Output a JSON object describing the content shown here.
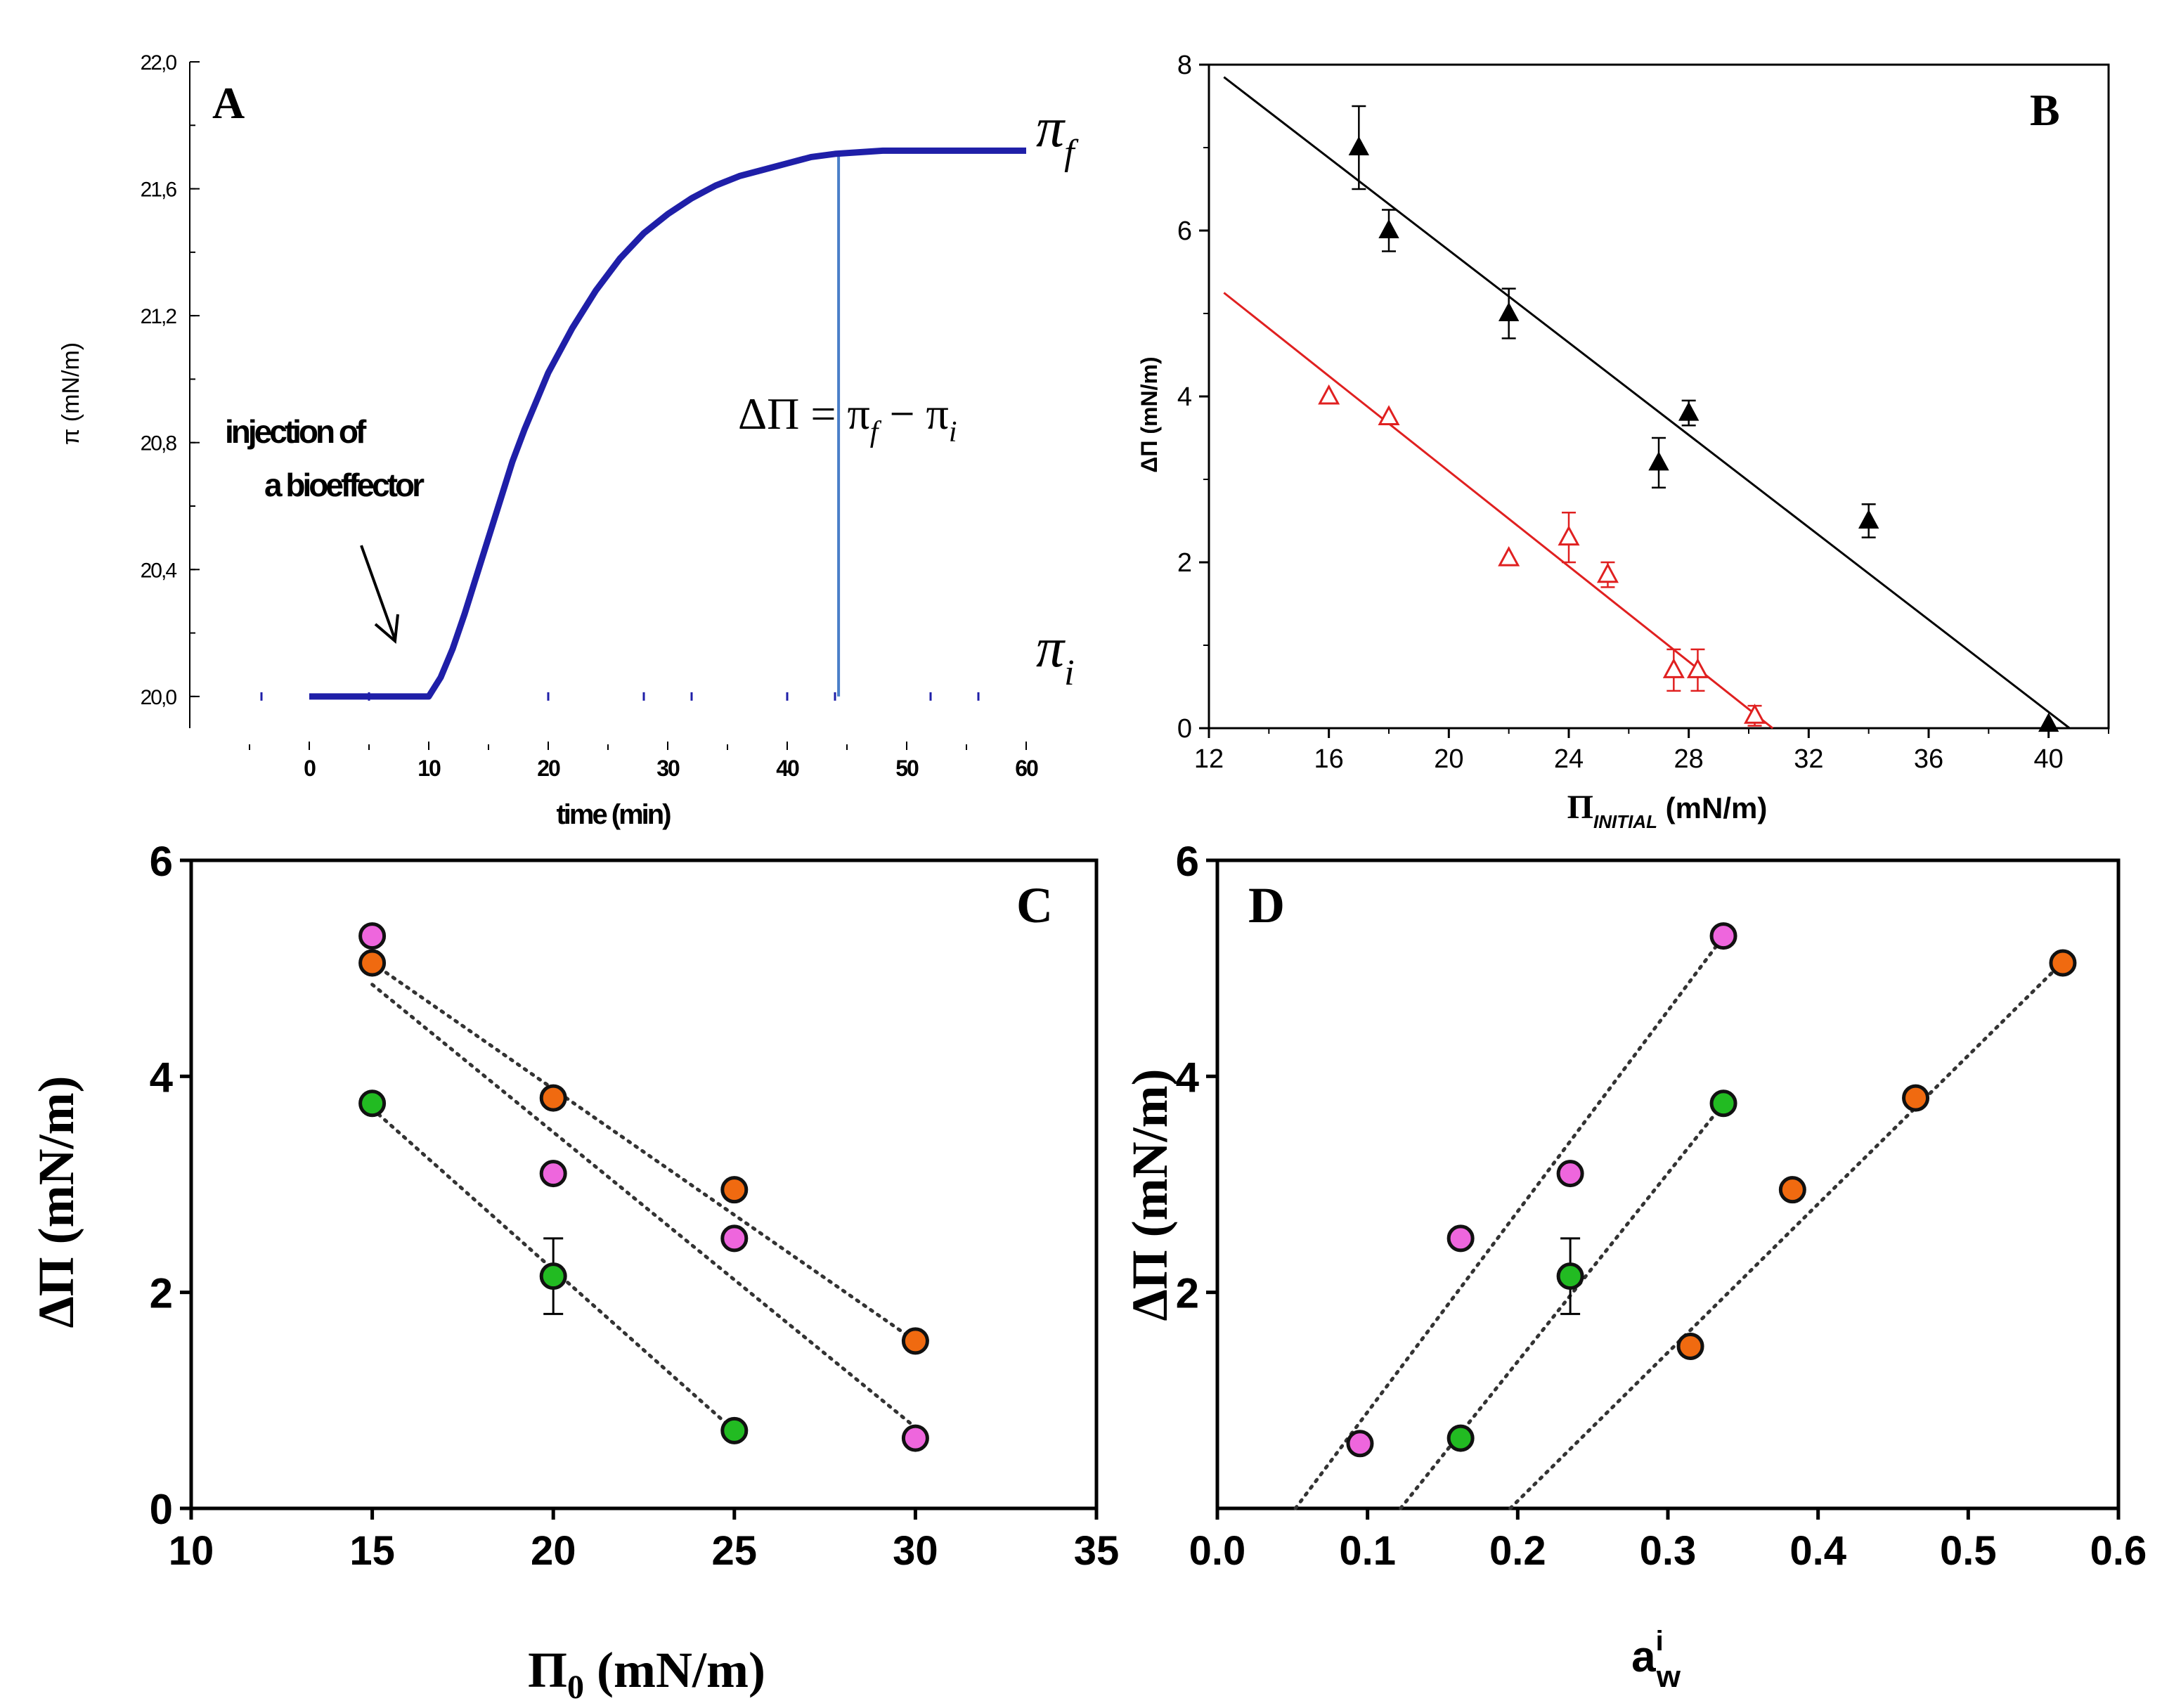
{
  "chart_data": [
    {
      "id": "A",
      "type": "line",
      "panel_letter": "A",
      "xlabel": "time (min)",
      "ylabel": "π (mN/m)",
      "xlim": [
        -10,
        60
      ],
      "ylim": [
        19.9,
        22.0
      ],
      "x_ticks": [
        0,
        10,
        20,
        30,
        40,
        50,
        60
      ],
      "x_tick_labels": [
        "0",
        "10",
        "20",
        "30",
        "40",
        "50",
        "60"
      ],
      "y_ticks": [
        20.0,
        20.4,
        20.8,
        21.2,
        21.6,
        22.0
      ],
      "y_tick_labels": [
        "20,0",
        "20,4",
        "20,8",
        "21,2",
        "21,6",
        "22,0"
      ],
      "series": [
        {
          "name": "surface pressure",
          "color": "#1f1fa8",
          "x": [
            0,
            10,
            11,
            12,
            13,
            14,
            15,
            16,
            17,
            18,
            19,
            20,
            22,
            24,
            26,
            28,
            30,
            32,
            34,
            36,
            38,
            40,
            42,
            44,
            46,
            48,
            50,
            55,
            60
          ],
          "y": [
            20.0,
            20.0,
            20.06,
            20.15,
            20.26,
            20.38,
            20.5,
            20.62,
            20.74,
            20.84,
            20.93,
            21.02,
            21.16,
            21.28,
            21.38,
            21.46,
            21.52,
            21.57,
            21.61,
            21.64,
            21.66,
            21.68,
            21.7,
            21.71,
            21.715,
            21.72,
            21.72,
            21.72,
            21.72
          ]
        }
      ],
      "baseline_dots": {
        "x": [
          -4,
          5,
          20,
          28,
          32,
          40,
          44,
          52,
          56
        ],
        "y": 20.0
      },
      "marker_line_x": 44.3,
      "annotations": {
        "injection_line1": "injection of",
        "injection_line2": "a bioeffector",
        "pi_f": "π",
        "pi_f_sub": "f",
        "pi_i": "π",
        "pi_i_sub": "i",
        "equation": "ΔΠ = π",
        "equation_sub1": "f",
        "equation_mid": " − π",
        "equation_sub2": "i"
      }
    },
    {
      "id": "B",
      "type": "scatter",
      "panel_letter": "B",
      "xlabel": "Π",
      "xlabel_sub": "INITIAL",
      "xlabel_unit": " (mN/m)",
      "ylabel": "ΔΠ (mN/m)",
      "xlim": [
        12,
        42
      ],
      "ylim": [
        0,
        8
      ],
      "x_ticks": [
        12,
        16,
        20,
        24,
        28,
        32,
        36,
        40
      ],
      "x_tick_labels": [
        "12",
        "16",
        "20",
        "24",
        "28",
        "32",
        "36",
        "40"
      ],
      "y_ticks": [
        0,
        2,
        4,
        6,
        8
      ],
      "y_tick_labels": [
        "0",
        "2",
        "4",
        "6",
        "8"
      ],
      "series": [
        {
          "name": "filled triangles",
          "color": "#000000",
          "marker": "filled-triangle",
          "x": [
            17,
            18,
            22,
            27,
            28,
            34,
            40
          ],
          "y": [
            7.0,
            6.0,
            5.0,
            3.2,
            3.8,
            2.5,
            0.05
          ],
          "err": [
            0.5,
            0.25,
            0.3,
            0.3,
            0.15,
            0.2,
            0.05
          ],
          "fit": {
            "x": [
              12.5,
              40.7
            ],
            "y": [
              7.85,
              0.0
            ]
          }
        },
        {
          "name": "open triangles",
          "color": "#e02020",
          "marker": "open-triangle",
          "x": [
            16,
            18,
            22,
            24,
            25.3,
            27.5,
            28.3,
            30.2
          ],
          "y": [
            4.0,
            3.75,
            2.05,
            2.3,
            1.85,
            0.7,
            0.7,
            0.15
          ],
          "err": [
            0.05,
            0.05,
            0.05,
            0.3,
            0.15,
            0.25,
            0.25,
            0.12
          ],
          "fit": {
            "x": [
              12.5,
              30.8
            ],
            "y": [
              5.25,
              0.0
            ]
          }
        }
      ]
    },
    {
      "id": "C",
      "type": "scatter",
      "panel_letter": "C",
      "xlabel": "Π",
      "xlabel_sub": "0",
      "xlabel_unit": " (mN/m)",
      "ylabel": "ΔΠ (mN/m)",
      "xlim": [
        10,
        35
      ],
      "ylim": [
        0,
        6
      ],
      "x_ticks": [
        10,
        15,
        20,
        25,
        30,
        35
      ],
      "x_tick_labels": [
        "10",
        "15",
        "20",
        "25",
        "30",
        "35"
      ],
      "y_ticks": [
        0,
        2,
        4,
        6
      ],
      "y_tick_labels": [
        "0",
        "2",
        "4",
        "6"
      ],
      "series": [
        {
          "name": "pink",
          "color": "#ee66dd",
          "x": [
            15,
            20,
            25,
            30
          ],
          "y": [
            5.3,
            3.1,
            2.5,
            0.65
          ],
          "fit": {
            "x": [
              15,
              30
            ],
            "y": [
              4.85,
              0.75
            ]
          }
        },
        {
          "name": "orange",
          "color": "#f06a10",
          "x": [
            15,
            20,
            25,
            30
          ],
          "y": [
            5.05,
            3.8,
            2.95,
            1.55
          ],
          "fit": {
            "x": [
              15,
              30
            ],
            "y": [
              5.05,
              1.55
            ]
          }
        },
        {
          "name": "green",
          "color": "#22bb22",
          "x": [
            15,
            20,
            25
          ],
          "y": [
            3.75,
            2.15,
            0.72
          ],
          "err": [
            0,
            0.35,
            0
          ],
          "fit": {
            "x": [
              15,
              25
            ],
            "y": [
              3.7,
              0.72
            ]
          }
        }
      ]
    },
    {
      "id": "D",
      "type": "scatter",
      "panel_letter": "D",
      "xlabel": "a",
      "xlabel_sup": "i",
      "xlabel_sub": "w",
      "ylabel": "ΔΠ (mN/m)",
      "xlim": [
        0.0,
        0.6
      ],
      "ylim": [
        0,
        6
      ],
      "x_ticks": [
        0.0,
        0.1,
        0.2,
        0.3,
        0.4,
        0.5,
        0.6
      ],
      "x_tick_labels": [
        "0.0",
        "0.1",
        "0.2",
        "0.3",
        "0.4",
        "0.5",
        "0.6"
      ],
      "y_ticks": [
        2,
        4,
        6
      ],
      "y_tick_labels": [
        "2",
        "4",
        "6"
      ],
      "series": [
        {
          "name": "pink",
          "color": "#ee66dd",
          "x": [
            0.095,
            0.162,
            0.235,
            0.337
          ],
          "y": [
            0.6,
            2.5,
            3.1,
            5.3
          ],
          "fit": {
            "x": [
              0.052,
              0.34
            ],
            "y": [
              0.0,
              5.35
            ]
          }
        },
        {
          "name": "green",
          "color": "#22bb22",
          "x": [
            0.162,
            0.235,
            0.337
          ],
          "y": [
            0.65,
            2.15,
            3.75
          ],
          "err": [
            0,
            0.35,
            0
          ],
          "fit": {
            "x": [
              0.122,
              0.34
            ],
            "y": [
              0.0,
              3.8
            ]
          }
        },
        {
          "name": "orange",
          "color": "#f06a10",
          "x": [
            0.315,
            0.383,
            0.465,
            0.563
          ],
          "y": [
            1.5,
            2.95,
            3.8,
            5.05
          ],
          "fit": {
            "x": [
              0.195,
              0.566
            ],
            "y": [
              0.0,
              5.1
            ]
          }
        }
      ]
    }
  ]
}
